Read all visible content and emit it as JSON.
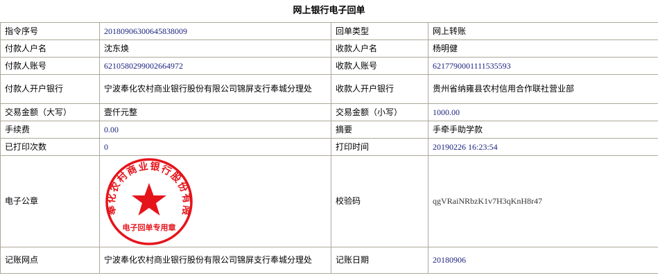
{
  "title": "网上银行电子回单",
  "rows": [
    {
      "l1": "指令序号",
      "v1": "20180906300645838009",
      "l2": "回单类型",
      "v2": "网上转账"
    },
    {
      "l1": "付款人户名",
      "v1": "沈东焕",
      "l2": "收款人户名",
      "v2": "杨明健"
    },
    {
      "l1": "付款人账号",
      "v1": "6210580299002664972",
      "l2": "收款人账号",
      "v2": "6217790001111535593"
    },
    {
      "l1": "付款人开户银行",
      "v1": "宁波奉化农村商业银行股份有限公司锦屏支行奉城分理处",
      "l2": "收款人开户银行",
      "v2": "贵州省纳雍县农村信用合作联社营业部"
    },
    {
      "l1": "交易金额（大写）",
      "v1": "壹仟元整",
      "l2": "交易金额（小写）",
      "v2": "1000.00"
    },
    {
      "l1": "手续费",
      "v1": "0.00",
      "l2": "摘要",
      "v2": "手牵手助学款"
    },
    {
      "l1": "已打印次数",
      "v1": "0",
      "l2": "打印时间",
      "v2": "20190226 16:23:54"
    },
    {
      "l1": "电子公章",
      "l2": "校验码",
      "v2": "qgVRaiNRbzK1v7H3qKnH8r47"
    },
    {
      "l1": "记账网点",
      "v1": "宁波奉化农村商业银行股份有限公司锦屏支行奉城分理处",
      "l2": "记账日期",
      "v2": "20180906"
    }
  ],
  "seal": {
    "arc_text": "宁波奉化农村商业银行股份有限公司",
    "bottom_text": "电子回单专用章",
    "color": "#e5141b",
    "icon": "star-icon"
  }
}
